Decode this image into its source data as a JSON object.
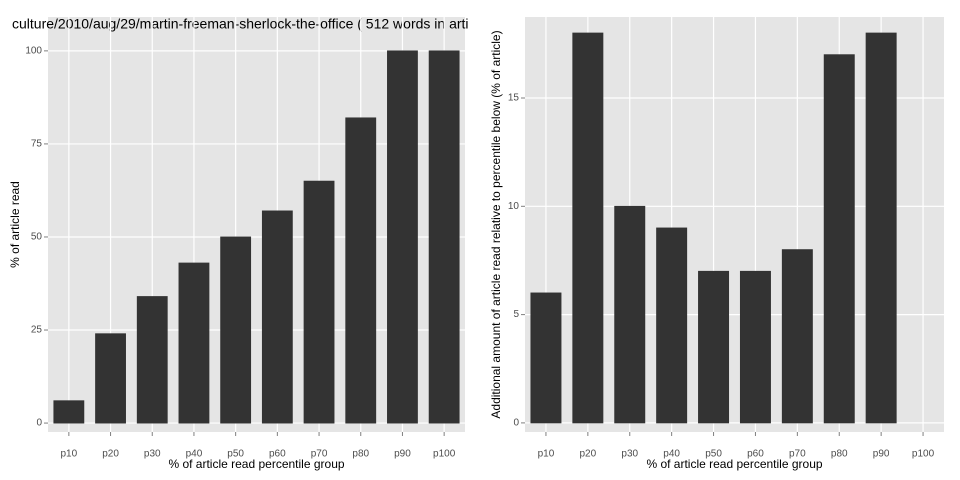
{
  "chart_data": [
    {
      "type": "bar",
      "title": "culture/2010/aug/29/martin-freeman-sherlock-the-office ( 512 words in arti",
      "x_label": "% of article read percentile group",
      "y_label": "% of article read",
      "categories": [
        "p10",
        "p20",
        "p30",
        "p40",
        "p50",
        "p60",
        "p70",
        "p80",
        "p90",
        "p100"
      ],
      "values": [
        6,
        24,
        34,
        43,
        50,
        57,
        65,
        82,
        100,
        100
      ],
      "color": "#333333",
      "ylim": [
        -2.4,
        109.1
      ],
      "yticks": [
        0,
        25,
        50,
        75,
        100
      ],
      "grid": true
    },
    {
      "type": "bar",
      "x_label": "% of article read percentile group",
      "y_label": "Additional amount of article read relative to percentile below (% of article)",
      "categories": [
        "p10",
        "p20",
        "p30",
        "p40",
        "p50",
        "p60",
        "p70",
        "p80",
        "p90",
        "p100"
      ],
      "values": [
        6,
        18,
        10,
        9,
        7,
        7,
        8,
        17,
        18,
        0
      ],
      "color": "#333333",
      "ylim": [
        -0.42,
        18.74
      ],
      "yticks": [
        0,
        5,
        10,
        15
      ],
      "grid": true
    }
  ]
}
